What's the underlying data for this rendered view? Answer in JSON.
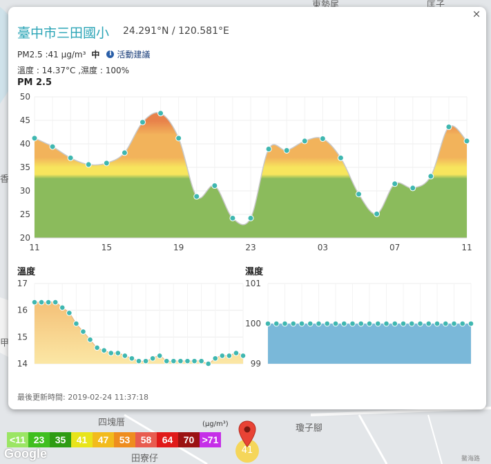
{
  "popup": {
    "site_name": "臺中市三田國小",
    "coords": "24.291°N / 120.581°E",
    "pm_text": "PM2.5 :41 μg/m³",
    "pm_level": "中",
    "activity_label": "活動建議",
    "env_text": "溫度 : 14.37°C ,濕度 : 100%",
    "pm_title": "PM 2.5",
    "temp_title": "溫度",
    "hum_title": "濕度",
    "updated": "最後更新時間: 2019-02-24 11:37:18",
    "close_label": "×"
  },
  "map": {
    "labels": [
      "東勢尾",
      "匡子",
      "四塊厝",
      "田寮仔",
      "瓊子腳",
      "甲",
      "香"
    ],
    "road_label": "鰲海路",
    "marker_value": "41",
    "google_logo": "Google"
  },
  "legend": {
    "unit": "(μg/m³)",
    "items": [
      {
        "label": "<11",
        "color": "#9be564"
      },
      {
        "label": "23",
        "color": "#3fbf1f"
      },
      {
        "label": "35",
        "color": "#2e9c13"
      },
      {
        "label": "41",
        "color": "#e8e41a"
      },
      {
        "label": "47",
        "color": "#f2bb1c"
      },
      {
        "label": "53",
        "color": "#ee8d1f"
      },
      {
        "label": "58",
        "color": "#e85c50"
      },
      {
        "label": "64",
        "color": "#e01a1a"
      },
      {
        "label": "70",
        "color": "#9b1212"
      },
      {
        "label": ">71",
        "color": "#c52fe8"
      }
    ]
  },
  "chart_data": [
    {
      "type": "area",
      "title": "PM 2.5",
      "x_ticks": [
        "11",
        "15",
        "19",
        "23",
        "03",
        "07",
        "11"
      ],
      "x_tick_index": [
        0,
        4,
        8,
        12,
        16,
        20,
        24
      ],
      "values": [
        41.2,
        39.4,
        37.0,
        35.6,
        35.9,
        38.1,
        44.6,
        46.5,
        41.2,
        28.8,
        31.1,
        24.2,
        24.2,
        38.9,
        38.6,
        40.6,
        41.1,
        37.0,
        29.3,
        25.1,
        31.5,
        30.6,
        33.1,
        43.6,
        40.6
      ],
      "ylim": [
        20,
        50
      ],
      "y_ticks": [
        20,
        25,
        30,
        35,
        40,
        45,
        50
      ],
      "colors": {
        "line": "#c8c8c8",
        "point": "#3fb7b0",
        "low": "#8bbb5c",
        "mid": "#f7e55d",
        "high": "#f2b35b",
        "top": "#e8824a"
      }
    },
    {
      "type": "area",
      "title": "溫度",
      "values": [
        16.3,
        16.3,
        16.3,
        16.3,
        16.1,
        15.9,
        15.5,
        15.2,
        14.9,
        14.6,
        14.5,
        14.4,
        14.4,
        14.3,
        14.2,
        14.1,
        14.1,
        14.2,
        14.3,
        14.1,
        14.1,
        14.1,
        14.1,
        14.1,
        14.1,
        14.0,
        14.2,
        14.3,
        14.3,
        14.4,
        14.3
      ],
      "ylim": [
        14,
        17
      ],
      "y_ticks": [
        14,
        15,
        16,
        17
      ],
      "colors": {
        "line": "#e4b98a",
        "point": "#3fb7b0",
        "top": "#f2b56a",
        "bottom": "#fbe7a5"
      }
    },
    {
      "type": "bar",
      "title": "濕度",
      "values": [
        100,
        100,
        100,
        100,
        100,
        100,
        100,
        100,
        100,
        100,
        100,
        100,
        100,
        100,
        100,
        100,
        100,
        100,
        100,
        100,
        100,
        100,
        100,
        100,
        100
      ],
      "ylim": [
        99,
        101
      ],
      "y_ticks": [
        99,
        100,
        101
      ],
      "colors": {
        "fill": "#7ab8d9",
        "point": "#3fb7b0"
      }
    }
  ]
}
